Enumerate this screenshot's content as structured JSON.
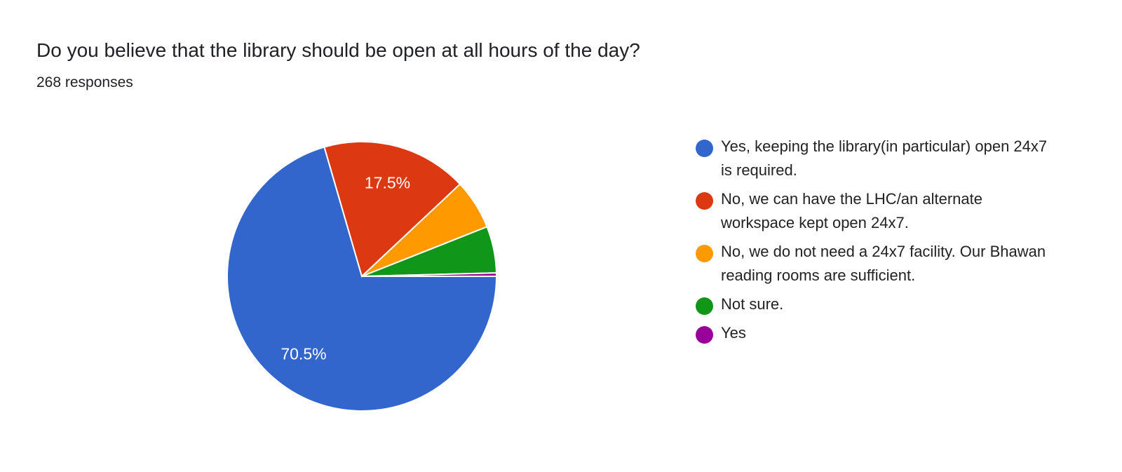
{
  "chart_data": {
    "type": "pie",
    "title": "Do you believe that the library should be open at all hours of the day?",
    "subtitle": "268 responses",
    "legend_position": "right",
    "categories": [
      "Yes, keeping the library(in particular) open 24x7 is required.",
      "No, we can have the LHC/an alternate workspace kept open 24x7.",
      "No, we do not need a 24x7 facility. Our Bhawan reading rooms are sufficient.",
      "Not sure.",
      "Yes"
    ],
    "values": [
      70.5,
      17.5,
      6.0,
      5.6,
      0.4
    ],
    "data_labels": [
      "70.5%",
      "17.5%",
      "",
      "",
      ""
    ],
    "colors": [
      "#3366cc",
      "#dc3912",
      "#ff9900",
      "#109618",
      "#990099"
    ]
  }
}
